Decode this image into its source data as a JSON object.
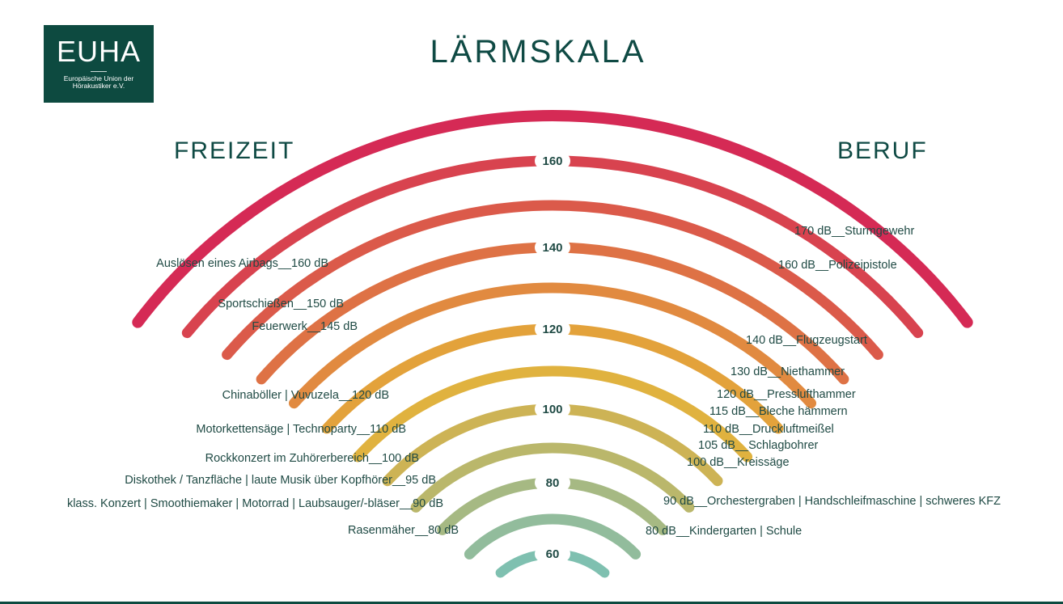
{
  "logo": {
    "word": "EUHA",
    "subtitle_line1": "Europäische Union der",
    "subtitle_line2": "Hörakustiker e.V."
  },
  "title": "LÄRMSKALA",
  "left_heading": "FREIZEIT",
  "right_heading": "BERUF",
  "arc_labels": [
    "160",
    "140",
    "120",
    "100",
    "80",
    "60"
  ],
  "left_labels": [
    "Auslösen eines Airbags__160 dB",
    "Sportschießen__150 dB",
    "Feuerwerk__145 dB",
    "Chinaböller  |  Vuvuzela__120 dB",
    "Motorkettensäge  |  Technoparty__110 dB",
    "Rockkonzert im Zuhörerbereich__100 dB",
    "Diskothek / Tanzfläche  |  laute Musik über Kopfhörer__95 dB",
    "klass. Konzert  |  Smoothiemaker  |  Motorrad  |  Laubsauger/-bläser__90 dB",
    "Rasenmäher__80 dB"
  ],
  "right_labels": [
    "170 dB__Sturmgewehr",
    "160 dB__Polizeipistole",
    "140 dB__Flugzeugstart",
    "130 dB__Niethammer",
    "120 dB__Presslufthammer",
    "115 dB__Bleche hämmern",
    "110 dB__Druckluftmeißel",
    "105 dB__Schlagbohrer",
    "100 dB__Kreissäge",
    "90 dB__Orchestergraben  |  Handschleifmaschine  |  schweres KFZ",
    "80 dB__Kindergarten  |  Schule"
  ],
  "colors": {
    "brand": "#0d4a40",
    "arcs": [
      "#d52a55",
      "#d8434f",
      "#db5a4a",
      "#de7245",
      "#e18a40",
      "#e3a23b",
      "#e0b23f",
      "#cdb355",
      "#bab76b",
      "#a6b983",
      "#92bc9c",
      "#7fc0b0"
    ]
  }
}
